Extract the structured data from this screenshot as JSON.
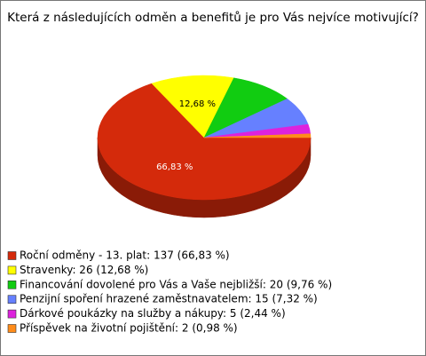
{
  "chart_data": {
    "type": "pie3d",
    "title": "Která z následujících odměn a benefitů je pro Vás nejvíce motivující?",
    "categories": [
      "Roční odměny - 13. plat: 137 (66,83 %)",
      "Stravenky: 26 (12,68 %)",
      "Financování dovolené pro Vás a Vaše nejbližší: 20 (9,76 %)",
      "Penzijní spoření hrazené zaměstnavatelem: 15 (7,32 %)",
      "Dárkové poukázky na služby a nákupy: 5 (2,44 %)",
      "Příspěvek na životní pojištění: 2 (0,98 %)"
    ],
    "values": [
      66.83,
      12.68,
      9.76,
      7.32,
      2.44,
      0.98
    ],
    "value_labels": [
      "66,83 %",
      "12,68 %",
      null,
      null,
      null,
      null
    ],
    "colors": [
      "#d42a0b",
      "#ffff00",
      "#11cc11",
      "#6680ff",
      "#dd22dd",
      "#ff8c1a"
    ],
    "legend": "bottom-left"
  }
}
